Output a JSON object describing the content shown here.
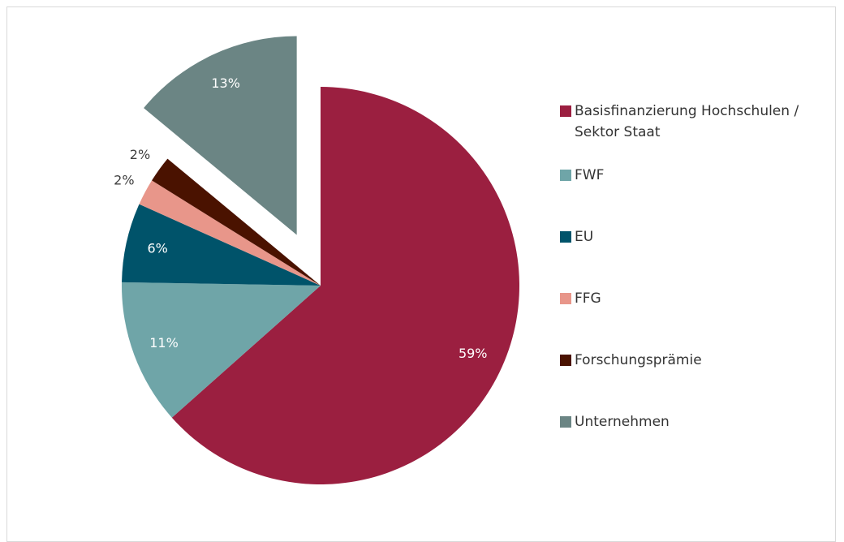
{
  "chart_data": {
    "type": "pie",
    "categories": [
      "Basisfinanzierung Hochschulen / Sektor Staat",
      "FWF",
      "EU",
      "FFG",
      "Forschungsprämie",
      "Unternehmen"
    ],
    "values": [
      59,
      11,
      6,
      2,
      2,
      13
    ],
    "value_labels": [
      "59%",
      "11%",
      "6%",
      "2%",
      "2%",
      "13%"
    ],
    "colors": [
      "#9b1f40",
      "#6fa5a8",
      "#00536a",
      "#e8968a",
      "#4a1200",
      "#6b8584"
    ],
    "exploded": [
      5
    ],
    "legend": "right"
  }
}
